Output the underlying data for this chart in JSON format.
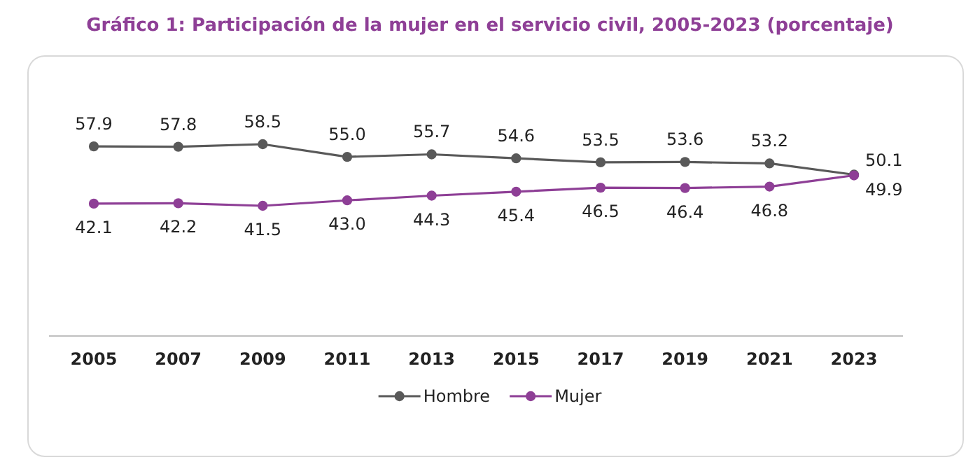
{
  "chart_data": {
    "type": "line",
    "title": "Gráfico 1: Participación de la mujer en el servicio civil, 2005-2023 (porcentaje)",
    "categories": [
      "2005",
      "2007",
      "2009",
      "2011",
      "2013",
      "2015",
      "2017",
      "2019",
      "2021",
      "2023"
    ],
    "series": [
      {
        "name": "Hombre",
        "color": "#595959",
        "values": [
          57.9,
          57.8,
          58.5,
          55.0,
          55.7,
          54.6,
          53.5,
          53.6,
          53.2,
          50.1
        ],
        "value_labels": [
          "57.9",
          "57.8",
          "58.5",
          "55.0",
          "55.7",
          "54.6",
          "53.5",
          "53.6",
          "53.2",
          "50.1"
        ]
      },
      {
        "name": "Mujer",
        "color": "#8e3f96",
        "values": [
          42.1,
          42.2,
          41.5,
          43.0,
          44.3,
          45.4,
          46.5,
          46.4,
          46.8,
          49.9
        ],
        "value_labels": [
          "42.1",
          "42.2",
          "41.5",
          "43.0",
          "44.3",
          "45.4",
          "46.5",
          "46.4",
          "46.8",
          "49.9"
        ]
      }
    ],
    "tick_labels": "x",
    "marker": "circle",
    "legend": "bottom"
  }
}
